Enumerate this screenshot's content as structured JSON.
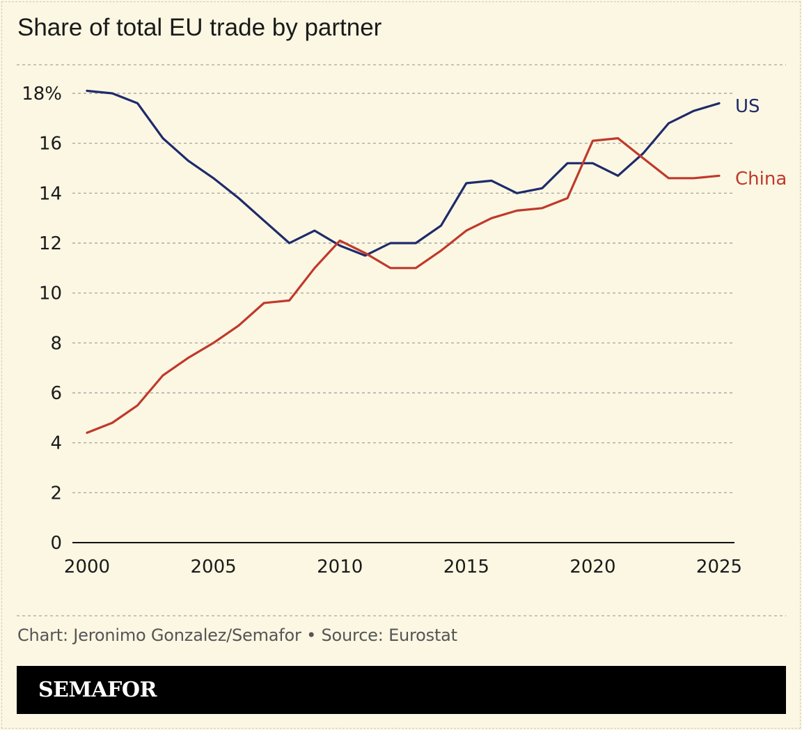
{
  "title": "Share of total EU trade by partner",
  "credit": "Chart: Jeronimo Gonzalez/Semafor • Source: Eurostat",
  "logo": "SEMAFOR",
  "colors": {
    "background": "#fbf7e3",
    "us": "#1f2a6b",
    "china": "#c0392b",
    "grid": "#9a9a9a",
    "axis": "#111111",
    "footer": "#000000"
  },
  "chart_data": {
    "type": "line",
    "title": "Share of total EU trade by partner",
    "xlabel": "",
    "ylabel": "",
    "xlim": [
      2000,
      2025
    ],
    "ylim": [
      0,
      18
    ],
    "x_ticks": [
      2000,
      2005,
      2010,
      2015,
      2020,
      2025
    ],
    "y_ticks": [
      0,
      2,
      4,
      6,
      8,
      10,
      12,
      14,
      16,
      18
    ],
    "y_tick_labels": [
      "0",
      "2",
      "4",
      "6",
      "8",
      "10",
      "12",
      "14",
      "16",
      "18%"
    ],
    "grid": "horizontal dashed",
    "legend": "direct labels at line ends",
    "x": [
      2000,
      2001,
      2002,
      2003,
      2004,
      2005,
      2006,
      2007,
      2008,
      2009,
      2010,
      2011,
      2012,
      2013,
      2014,
      2015,
      2016,
      2017,
      2018,
      2019,
      2020,
      2021,
      2022,
      2023,
      2024,
      2025
    ],
    "series": [
      {
        "name": "US",
        "color": "#1f2a6b",
        "values": [
          18.1,
          18.0,
          17.6,
          16.2,
          15.3,
          14.6,
          13.8,
          12.9,
          12.0,
          12.5,
          11.9,
          11.5,
          12.0,
          12.0,
          12.7,
          14.4,
          14.5,
          14.0,
          14.2,
          15.2,
          15.2,
          14.7,
          15.6,
          16.8,
          17.3,
          17.6
        ]
      },
      {
        "name": "China",
        "color": "#c0392b",
        "values": [
          4.4,
          4.8,
          5.5,
          6.7,
          7.4,
          8.0,
          8.7,
          9.6,
          9.7,
          11.0,
          12.1,
          11.6,
          11.0,
          11.0,
          11.7,
          12.5,
          13.0,
          13.3,
          13.4,
          13.8,
          16.1,
          16.2,
          15.4,
          14.6,
          14.6,
          14.7
        ]
      }
    ]
  }
}
